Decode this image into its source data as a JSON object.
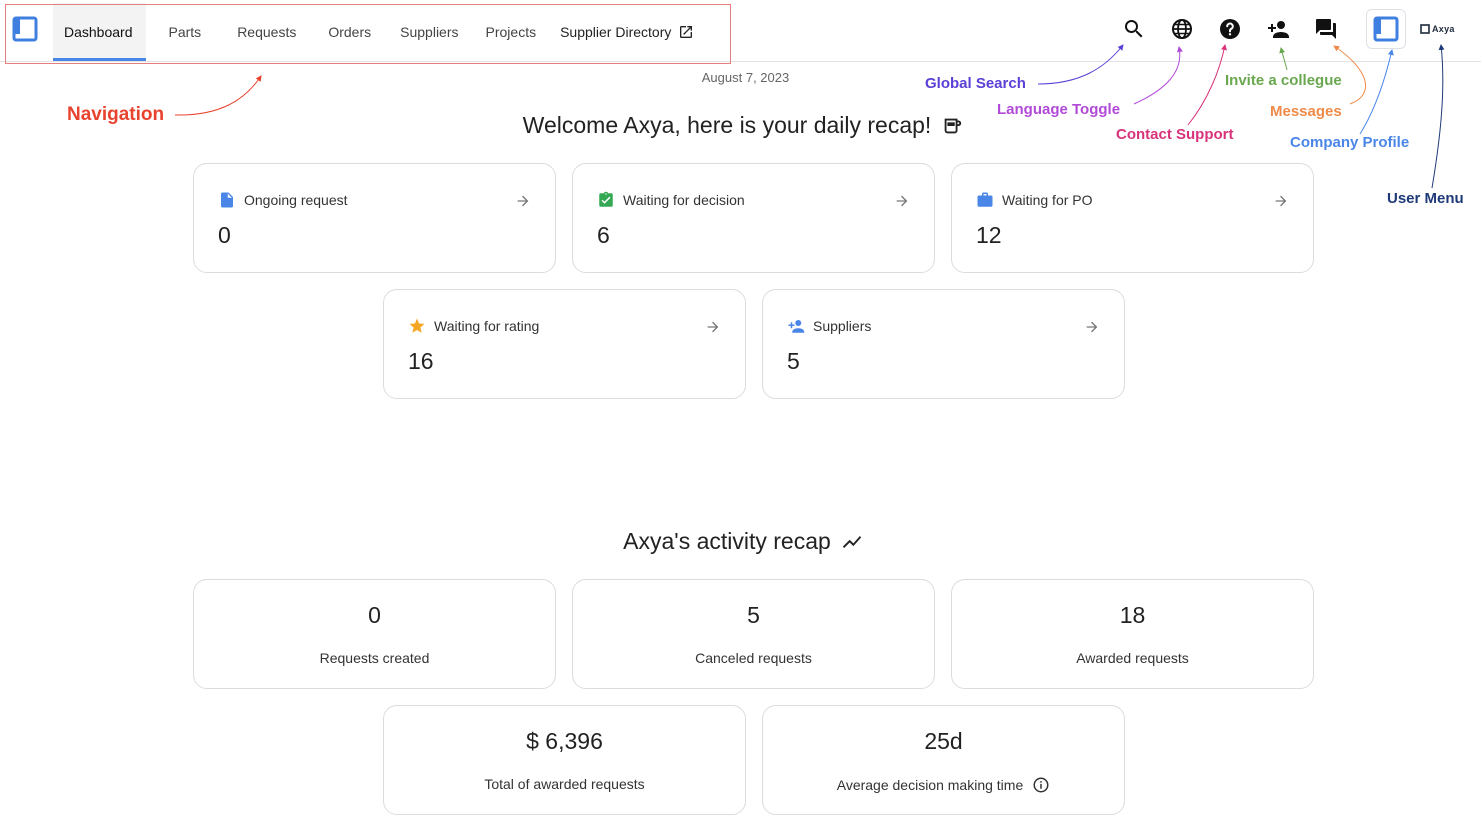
{
  "nav": {
    "items": [
      {
        "label": "Dashboard",
        "active": true
      },
      {
        "label": "Parts"
      },
      {
        "label": "Requests"
      },
      {
        "label": "Orders"
      },
      {
        "label": "Suppliers"
      },
      {
        "label": "Projects"
      },
      {
        "label": "Supplier Directory",
        "external": true
      }
    ]
  },
  "header": {
    "icons": [
      "search-icon",
      "globe-icon",
      "help-icon",
      "person-add-icon",
      "chat-icon"
    ],
    "user_menu_label": "Axya"
  },
  "date": "August 7, 2023",
  "welcome": {
    "title": "Welcome Axya, here is your daily recap!",
    "cards": [
      {
        "label": "Ongoing request",
        "value": "0",
        "icon": "file-icon",
        "color": "#4a86e8"
      },
      {
        "label": "Waiting for decision",
        "value": "6",
        "icon": "clipboard-check-icon",
        "color": "#34a853"
      },
      {
        "label": "Waiting for PO",
        "value": "12",
        "icon": "briefcase-icon",
        "color": "#4a86e8"
      },
      {
        "label": "Waiting for rating",
        "value": "16",
        "icon": "star-icon",
        "color": "#f5a623"
      },
      {
        "label": "Suppliers",
        "value": "5",
        "icon": "person-add-icon",
        "color": "#4a86e8"
      }
    ]
  },
  "activity": {
    "title": "Axya's activity recap",
    "stats": [
      {
        "value": "0",
        "label": "Requests created"
      },
      {
        "value": "5",
        "label": "Canceled requests"
      },
      {
        "value": "18",
        "label": "Awarded requests"
      },
      {
        "value": "$ 6,396",
        "label": "Total of awarded requests"
      },
      {
        "value": "25d",
        "label": "Average decision making time",
        "info": true
      }
    ]
  },
  "annotations": [
    {
      "text": "Navigation",
      "color": "#e8432e"
    },
    {
      "text": "Global Search",
      "color": "#5b3fd6"
    },
    {
      "text": "Language Toggle",
      "color": "#b24ad8"
    },
    {
      "text": "Contact Support",
      "color": "#d8337a"
    },
    {
      "text": "Invite a collegue",
      "color": "#6aa84f"
    },
    {
      "text": "Messages",
      "color": "#ef8b4a"
    },
    {
      "text": "Company Profile",
      "color": "#4a86e8"
    },
    {
      "text": "User Menu",
      "color": "#1f3a78"
    }
  ]
}
